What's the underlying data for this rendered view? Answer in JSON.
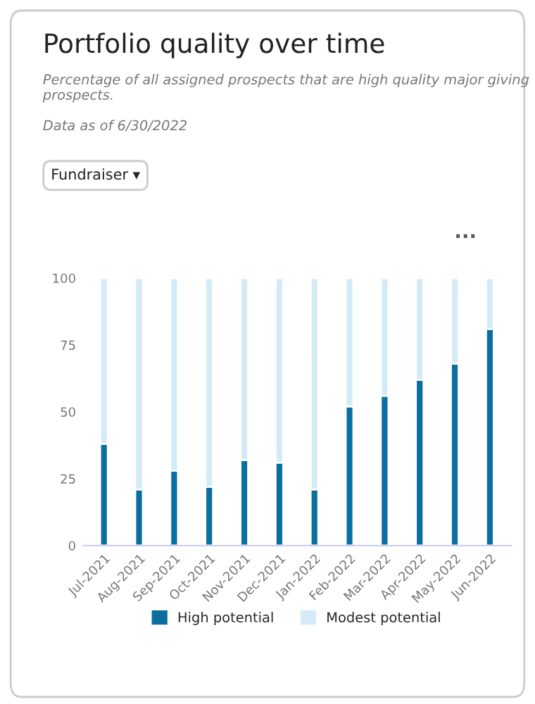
{
  "chart_data": {
    "type": "bar",
    "title": "Portfolio quality over time",
    "subtitle": "Percentage of all assigned prospects that are high quality major giving prospects.",
    "annotations": [
      "Data as of 6/30/2022",
      "Fundraiser ▾",
      "···"
    ],
    "categories": [
      "Jul-2021",
      "Aug-2021",
      "Sep-2021",
      "Oct-2021",
      "Nov-2021",
      "Dec-2021",
      "Jan-2022",
      "Feb-2022",
      "Mar-2022",
      "Apr-2022",
      "May-2022",
      "Jun-2022"
    ],
    "series": [
      {
        "name": "High potential",
        "color": "#0a6fa0",
        "values": [
          38,
          21,
          28,
          22,
          32,
          31,
          21,
          52,
          56,
          62,
          68,
          81
        ]
      },
      {
        "name": "Modest potential",
        "color": "#d4ebf7",
        "values": [
          62,
          79,
          72,
          78,
          68,
          69,
          79,
          48,
          44,
          38,
          32,
          19
        ]
      }
    ],
    "stacked": true,
    "ylim": [
      0,
      100
    ],
    "yticks": [
      0,
      25,
      50,
      75,
      100
    ],
    "grid": false,
    "legend": "bottom"
  }
}
